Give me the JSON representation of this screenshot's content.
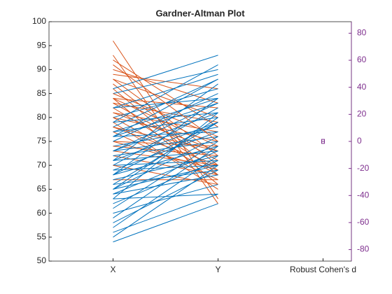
{
  "chart_data": {
    "type": "gardner-altman",
    "title": "Gardner-Altman Plot",
    "categories": [
      "X",
      "Y",
      "Robust Cohen's d"
    ],
    "x_values": [
      96,
      93,
      92,
      90,
      89,
      88,
      88,
      87,
      86,
      85,
      85,
      84,
      84,
      84,
      83,
      83,
      82,
      82,
      81,
      81,
      80,
      80,
      80,
      79,
      79,
      78,
      78,
      78,
      77,
      77,
      76,
      76,
      75,
      75,
      75,
      74,
      74,
      73,
      73,
      73,
      72,
      72,
      71,
      71,
      70,
      70,
      70,
      69,
      69,
      68,
      68,
      67,
      67,
      66,
      66,
      65,
      65,
      64,
      64,
      63,
      63,
      62,
      61,
      60,
      59,
      58,
      57,
      56,
      55,
      54,
      86,
      82,
      79,
      76,
      73,
      71,
      68,
      65,
      91,
      77
    ],
    "y_values": [
      63,
      62,
      78,
      83,
      86,
      80,
      72,
      70,
      68,
      90,
      76,
      74,
      82,
      66,
      79,
      71,
      84,
      69,
      77,
      73,
      86,
      68,
      75,
      81,
      65,
      88,
      73,
      70,
      80,
      67,
      77,
      83,
      74,
      69,
      85,
      78,
      72,
      70,
      81,
      76,
      68,
      75,
      79,
      73,
      71,
      82,
      66,
      77,
      70,
      84,
      74,
      67,
      72,
      79,
      69,
      76,
      70,
      73,
      68,
      81,
      64,
      71,
      75,
      66,
      74,
      69,
      72,
      64,
      70,
      62,
      93,
      89,
      91,
      88,
      83,
      87,
      79,
      80,
      75,
      84
    ],
    "increase_color": "#0072bd",
    "decrease_color": "#d95319",
    "effect_color": "#7e2f8e",
    "effect": 0,
    "ci": [
      -1.5,
      1.5
    ],
    "xlim": [
      0.39,
      3.27
    ],
    "ylim": [
      50,
      100
    ],
    "yticks": [
      50,
      55,
      60,
      65,
      70,
      75,
      80,
      85,
      90,
      95,
      100
    ],
    "y2lim": [
      -88.5,
      88.5
    ],
    "y2ticks": [
      -80,
      -60,
      -40,
      -20,
      0,
      20,
      40,
      60,
      80
    ]
  }
}
